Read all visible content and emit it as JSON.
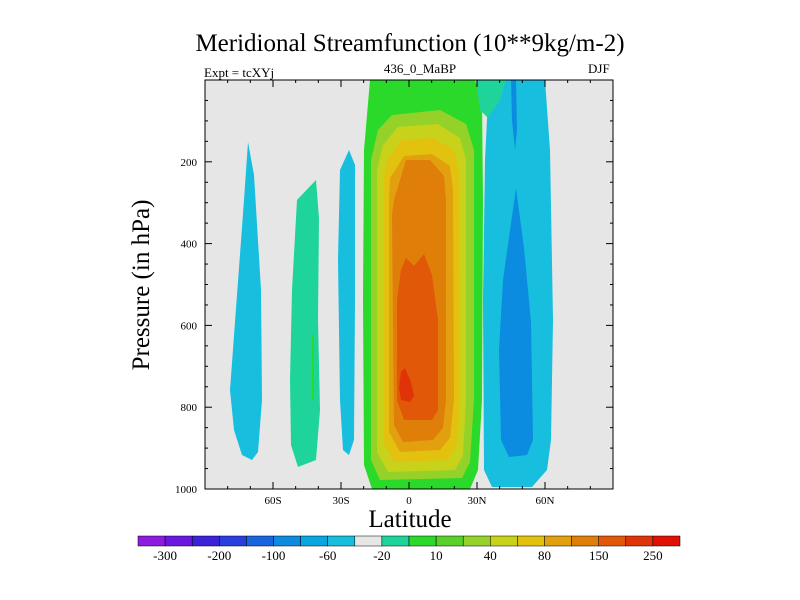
{
  "chart_data": {
    "type": "contour",
    "title": "Meridional Streamfunction (10**9kg/m-2)",
    "left_label": "Expt = tcXYj",
    "center_label": "436_0_MaBP",
    "right_label": "DJF",
    "xlabel": "Latitude",
    "ylabel": "Pressure (in hPa)",
    "x_ticks": [
      "60S",
      "30S",
      "0",
      "30N",
      "60N"
    ],
    "x_tick_values": [
      -60,
      -30,
      0,
      30,
      60
    ],
    "y_ticks": [
      "200",
      "400",
      "600",
      "800",
      "1000"
    ],
    "y_tick_values": [
      200,
      400,
      600,
      800,
      1000
    ],
    "xlim": [
      -90,
      90
    ],
    "ylim": [
      1000,
      0
    ],
    "colorbar": {
      "labels": [
        "-300",
        "-200",
        "-100",
        "-60",
        "-20",
        "10",
        "40",
        "80",
        "150",
        "250"
      ],
      "colors": [
        "#8c1ce0",
        "#6a18e0",
        "#3c22d8",
        "#2a3ede",
        "#1a64e0",
        "#0c8ce0",
        "#0aa6e0",
        "#17bedd",
        "#e6e6e6",
        "#1fd49a",
        "#2ad92a",
        "#5ad02a",
        "#94d22a",
        "#c8d21a",
        "#e2c20e",
        "#e2a00e",
        "#e07e0a",
        "#e05808",
        "#e03408",
        "#e01006"
      ]
    },
    "regions": [
      {
        "level": "-20",
        "color": "#17bedd",
        "lat_range": [
          -78,
          -66
        ],
        "p_range": [
          140,
          925
        ]
      },
      {
        "level": "10",
        "color": "#1fd49a",
        "lat_range": [
          -52,
          -38
        ],
        "p_range": [
          180,
          945
        ]
      },
      {
        "level": "-20",
        "color": "#17bedd",
        "lat_range": [
          -30,
          -23
        ],
        "p_range": [
          170,
          915
        ]
      },
      {
        "level": "40",
        "color": "#2ad92a",
        "lat_range": [
          -18,
          30
        ],
        "p_range": [
          0,
          1000
        ]
      },
      {
        "level": "80",
        "color": "#94d22a",
        "lat_range": [
          -15,
          27
        ],
        "p_range": [
          70,
          980
        ]
      },
      {
        "level": "150",
        "color": "#e2a00e",
        "lat_range": [
          -11,
          23
        ],
        "p_range": [
          140,
          960
        ]
      },
      {
        "level": "250",
        "color": "#e05808",
        "lat_range": [
          -6,
          15
        ],
        "p_range": [
          420,
          870
        ]
      },
      {
        "level": "-20",
        "color": "#17bedd",
        "lat_range": [
          33,
          66
        ],
        "p_range": [
          0,
          995
        ]
      },
      {
        "level": "-60",
        "color": "#0c8ce0",
        "lat_range": [
          42,
          59
        ],
        "p_range": [
          260,
          970
        ]
      }
    ]
  }
}
